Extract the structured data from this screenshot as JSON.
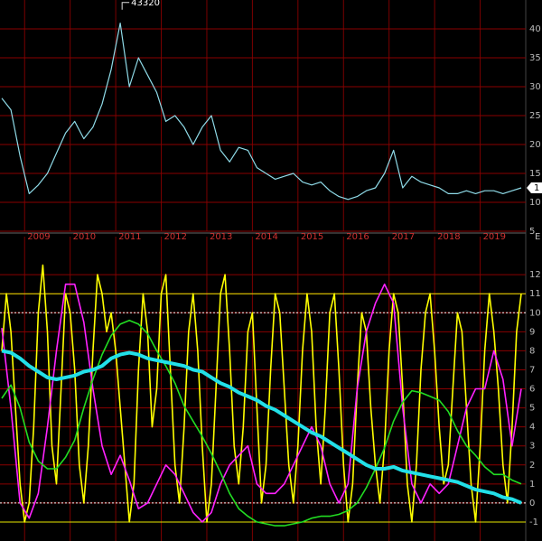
{
  "chart_data": [
    {
      "type": "line",
      "color": "#8fdbe8",
      "xlim": [
        2008.46,
        2020.0
      ],
      "xticks": [
        2009,
        2010,
        2011,
        2012,
        2013,
        2014,
        2015,
        2016,
        2017,
        2018,
        2019
      ],
      "ylim": [
        5000,
        45000
      ],
      "yticks": [
        {
          "value": 40000,
          "label": "40"
        },
        {
          "value": 35000,
          "label": "35"
        },
        {
          "value": 30000,
          "label": "30"
        },
        {
          "value": 25000,
          "label": "25"
        },
        {
          "value": 20000,
          "label": "20"
        },
        {
          "value": 15000,
          "label": "15"
        },
        {
          "value": 10000,
          "label": "10"
        },
        {
          "value": 5000,
          "label": "5"
        }
      ],
      "grid": true,
      "peak": 43320,
      "peak_x": 2011.14,
      "last_label": "1",
      "x_label_extra": "E",
      "x": [
        2008.5,
        2008.7,
        2008.9,
        2009.1,
        2009.3,
        2009.5,
        2009.7,
        2009.9,
        2010.1,
        2010.3,
        2010.5,
        2010.7,
        2010.9,
        2011.1,
        2011.3,
        2011.5,
        2011.7,
        2011.9,
        2012.1,
        2012.3,
        2012.5,
        2012.7,
        2012.9,
        2013.1,
        2013.3,
        2013.5,
        2013.7,
        2013.9,
        2014.1,
        2014.3,
        2014.5,
        2014.7,
        2014.9,
        2015.1,
        2015.3,
        2015.5,
        2015.7,
        2015.9,
        2016.1,
        2016.3,
        2016.5,
        2016.7,
        2016.9,
        2017.1,
        2017.3,
        2017.5,
        2017.7,
        2017.9,
        2018.1,
        2018.3,
        2018.5,
        2018.7,
        2018.9,
        2019.1,
        2019.3,
        2019.5,
        2019.7,
        2019.9
      ],
      "values": [
        28000,
        26000,
        18000,
        11500,
        13000,
        15000,
        18500,
        22000,
        24000,
        21000,
        23000,
        27000,
        33000,
        41000,
        30000,
        35000,
        32000,
        29000,
        24000,
        25000,
        23000,
        20000,
        23000,
        25000,
        19000,
        17000,
        19500,
        19000,
        16000,
        15000,
        14000,
        14500,
        15000,
        13500,
        13000,
        13500,
        12000,
        11000,
        10500,
        11000,
        12000,
        12500,
        15000,
        19000,
        12500,
        14500,
        13500,
        13000,
        12500,
        11500,
        11500,
        12000,
        11500,
        12000,
        12000,
        11500,
        12000,
        12500
      ]
    },
    {
      "type": "line",
      "xlim": [
        2008.46,
        2020.0
      ],
      "xticks": [
        2009,
        2010,
        2011,
        2012,
        2013,
        2014,
        2015,
        2016,
        2017,
        2018,
        2019
      ],
      "ylim": [
        -2,
        14
      ],
      "yticks": [
        12,
        11,
        10,
        9,
        8,
        7,
        6,
        5,
        4,
        3,
        2,
        1,
        0,
        -1
      ],
      "grid": true,
      "hlines": [
        {
          "value": 11,
          "color": "#e8e800",
          "dash": false
        },
        {
          "value": -1,
          "color": "#e8e800",
          "dash": false
        },
        {
          "value": 10,
          "color": "#ffffff",
          "dash": true
        },
        {
          "value": 0,
          "color": "#ffffff",
          "dash": true
        }
      ],
      "series": [
        {
          "color": "#ffff00",
          "x": [
            2008.5,
            2008.6,
            2008.7,
            2008.8,
            2008.9,
            2009.0,
            2009.1,
            2009.2,
            2009.3,
            2009.4,
            2009.5,
            2009.6,
            2009.7,
            2009.8,
            2009.9,
            2010.0,
            2010.1,
            2010.2,
            2010.3,
            2010.4,
            2010.5,
            2010.6,
            2010.7,
            2010.8,
            2010.9,
            2011.0,
            2011.1,
            2011.2,
            2011.3,
            2011.4,
            2011.5,
            2011.6,
            2011.7,
            2011.8,
            2011.9,
            2012.0,
            2012.1,
            2012.2,
            2012.3,
            2012.4,
            2012.5,
            2012.6,
            2012.7,
            2012.8,
            2012.9,
            2013.0,
            2013.1,
            2013.2,
            2013.3,
            2013.4,
            2013.5,
            2013.6,
            2013.7,
            2013.8,
            2013.9,
            2014.0,
            2014.1,
            2014.2,
            2014.3,
            2014.4,
            2014.5,
            2014.6,
            2014.7,
            2014.8,
            2014.9,
            2015.0,
            2015.1,
            2015.2,
            2015.3,
            2015.4,
            2015.5,
            2015.6,
            2015.7,
            2015.8,
            2015.9,
            2016.0,
            2016.1,
            2016.2,
            2016.3,
            2016.4,
            2016.5,
            2016.6,
            2016.7,
            2016.8,
            2016.9,
            2017.0,
            2017.1,
            2017.2,
            2017.3,
            2017.4,
            2017.5,
            2017.6,
            2017.7,
            2017.8,
            2017.9,
            2018.0,
            2018.1,
            2018.2,
            2018.3,
            2018.4,
            2018.5,
            2018.6,
            2018.7,
            2018.8,
            2018.9,
            2019.0,
            2019.1,
            2019.2,
            2019.3,
            2019.4,
            2019.5,
            2019.6,
            2019.7,
            2019.8,
            2019.9
          ],
          "values": [
            8,
            11,
            9,
            5,
            1,
            -1,
            0,
            4,
            10,
            12.5,
            9,
            3,
            1,
            6,
            11,
            10,
            7,
            2,
            0,
            3,
            8,
            12,
            11,
            9,
            10,
            8,
            5,
            2,
            -1,
            1,
            7,
            11,
            9,
            4,
            6,
            11,
            12,
            7,
            2,
            0,
            4,
            9,
            11,
            8,
            3,
            -1,
            1,
            6,
            11,
            12,
            8,
            3,
            1,
            4,
            9,
            10,
            5,
            0,
            2,
            7,
            11,
            10,
            6,
            2,
            0,
            3,
            8,
            11,
            9,
            4,
            1,
            5,
            10,
            11,
            7,
            2,
            -1,
            1,
            6,
            10,
            9,
            5,
            2,
            0,
            3,
            8,
            11,
            10,
            6,
            1,
            -1,
            2,
            7,
            10,
            11,
            8,
            4,
            1,
            2,
            6,
            10,
            9,
            5,
            1,
            -1,
            3,
            8,
            11,
            9,
            6,
            2,
            0,
            4,
            9,
            11
          ]
        },
        {
          "color": "#ff22ff",
          "x": [
            2008.5,
            2008.7,
            2008.9,
            2009.1,
            2009.3,
            2009.5,
            2009.7,
            2009.9,
            2010.1,
            2010.3,
            2010.5,
            2010.7,
            2010.9,
            2011.1,
            2011.3,
            2011.5,
            2011.7,
            2011.9,
            2012.1,
            2012.3,
            2012.5,
            2012.7,
            2012.9,
            2013.1,
            2013.3,
            2013.5,
            2013.7,
            2013.9,
            2014.1,
            2014.3,
            2014.5,
            2014.7,
            2014.9,
            2015.1,
            2015.3,
            2015.5,
            2015.7,
            2015.9,
            2016.1,
            2016.3,
            2016.5,
            2016.7,
            2016.9,
            2017.1,
            2017.3,
            2017.5,
            2017.7,
            2017.9,
            2018.1,
            2018.3,
            2018.5,
            2018.7,
            2018.9,
            2019.1,
            2019.3,
            2019.5,
            2019.7,
            2019.9
          ],
          "values": [
            9.2,
            5,
            0,
            -0.8,
            0.5,
            4,
            8,
            11.5,
            11.5,
            9.5,
            6,
            3,
            1.5,
            2.5,
            1.2,
            -0.3,
            0,
            1,
            2,
            1.5,
            0.5,
            -0.5,
            -1,
            -0.5,
            1,
            2,
            2.5,
            3,
            1,
            0.5,
            0.5,
            1,
            2,
            3,
            4,
            3,
            1,
            0,
            1,
            6,
            9,
            10.5,
            11.5,
            10.5,
            5,
            1,
            0,
            1,
            0.5,
            1,
            3,
            5,
            6,
            6,
            8,
            6.5,
            3,
            6
          ]
        },
        {
          "color": "#22dd22",
          "x": [
            2008.5,
            2008.7,
            2008.9,
            2009.1,
            2009.3,
            2009.5,
            2009.7,
            2009.9,
            2010.1,
            2010.3,
            2010.5,
            2010.7,
            2010.9,
            2011.1,
            2011.3,
            2011.5,
            2011.7,
            2011.9,
            2012.1,
            2012.3,
            2012.5,
            2012.7,
            2012.9,
            2013.1,
            2013.3,
            2013.5,
            2013.7,
            2013.9,
            2014.1,
            2014.3,
            2014.5,
            2014.7,
            2014.9,
            2015.1,
            2015.3,
            2015.5,
            2015.7,
            2015.9,
            2016.1,
            2016.3,
            2016.5,
            2016.7,
            2016.9,
            2017.1,
            2017.3,
            2017.5,
            2017.7,
            2017.9,
            2018.1,
            2018.3,
            2018.5,
            2018.7,
            2018.9,
            2019.1,
            2019.3,
            2019.5,
            2019.7,
            2019.9
          ],
          "values": [
            5.5,
            6.2,
            5,
            3.2,
            2.2,
            1.8,
            1.8,
            2.4,
            3.3,
            5,
            6.5,
            7.8,
            8.8,
            9.4,
            9.6,
            9.4,
            8.9,
            8,
            7.2,
            6.3,
            5.1,
            4.3,
            3.5,
            2.6,
            1.6,
            0.5,
            -0.3,
            -0.7,
            -1,
            -1.1,
            -1.2,
            -1.2,
            -1.1,
            -1,
            -0.8,
            -0.7,
            -0.7,
            -0.6,
            -0.4,
            0,
            0.8,
            1.8,
            2.9,
            4.3,
            5.3,
            5.9,
            5.8,
            5.6,
            5.4,
            4.8,
            3.8,
            3,
            2.5,
            1.9,
            1.5,
            1.5,
            1.2,
            1
          ]
        },
        {
          "color": "#22e0e8",
          "x": [
            2008.5,
            2008.7,
            2008.9,
            2009.1,
            2009.3,
            2009.5,
            2009.7,
            2009.9,
            2010.1,
            2010.3,
            2010.5,
            2010.7,
            2010.9,
            2011.1,
            2011.3,
            2011.5,
            2011.7,
            2011.9,
            2012.1,
            2012.3,
            2012.5,
            2012.7,
            2012.9,
            2013.1,
            2013.3,
            2013.5,
            2013.7,
            2013.9,
            2014.1,
            2014.3,
            2014.5,
            2014.7,
            2014.9,
            2015.1,
            2015.3,
            2015.5,
            2015.7,
            2015.9,
            2016.1,
            2016.3,
            2016.5,
            2016.7,
            2016.9,
            2017.1,
            2017.3,
            2017.5,
            2017.7,
            2017.9,
            2018.1,
            2018.3,
            2018.5,
            2018.7,
            2018.9,
            2019.1,
            2019.3,
            2019.5,
            2019.7,
            2019.9
          ],
          "values": [
            8,
            7.9,
            7.6,
            7.2,
            6.9,
            6.6,
            6.5,
            6.6,
            6.7,
            6.9,
            7,
            7.2,
            7.6,
            7.8,
            7.9,
            7.8,
            7.6,
            7.5,
            7.4,
            7.3,
            7.2,
            7,
            6.9,
            6.6,
            6.3,
            6.1,
            5.8,
            5.6,
            5.4,
            5.1,
            4.9,
            4.6,
            4.3,
            4,
            3.7,
            3.5,
            3.2,
            2.9,
            2.6,
            2.3,
            2,
            1.8,
            1.8,
            1.9,
            1.7,
            1.6,
            1.5,
            1.4,
            1.3,
            1.2,
            1.1,
            0.9,
            0.7,
            0.6,
            0.5,
            0.3,
            0.2,
            0
          ]
        }
      ]
    }
  ]
}
